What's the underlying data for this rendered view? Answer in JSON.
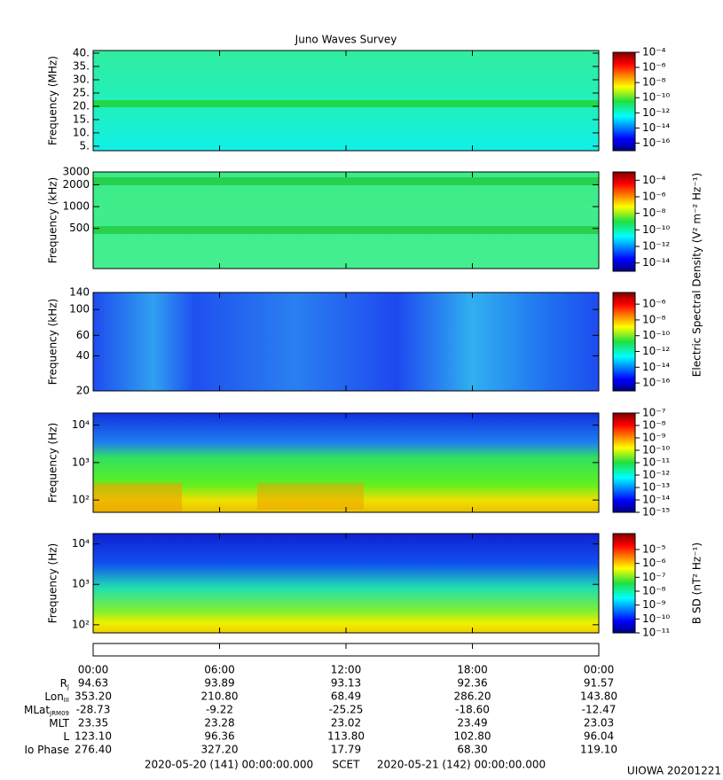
{
  "chart_data": [
    {
      "type": "spectrogram",
      "title": "Juno Waves Survey",
      "y_label": "Frequency (MHz)",
      "ylog": false,
      "ylim": [
        3.3,
        41
      ],
      "yticks": [
        {
          "value": 5,
          "label": "5."
        },
        {
          "value": 10,
          "label": "10."
        },
        {
          "value": 15,
          "label": "15."
        },
        {
          "value": 20,
          "label": "20."
        },
        {
          "value": 25,
          "label": "25."
        },
        {
          "value": 30,
          "label": "30."
        },
        {
          "value": 35,
          "label": "35."
        },
        {
          "value": 40,
          "label": "40."
        }
      ],
      "colorbar": {
        "log": true,
        "lim": [
          1e-17,
          0.0001
        ],
        "ticks": [
          {
            "value": 0.0001,
            "label": "10⁻⁴"
          },
          {
            "value": 1e-06,
            "label": "10⁻⁶"
          },
          {
            "value": 1e-08,
            "label": "10⁻⁸"
          },
          {
            "value": 1e-10,
            "label": "10⁻¹⁰"
          },
          {
            "value": 1e-12,
            "label": "10⁻¹²"
          },
          {
            "value": 1e-14,
            "label": "10⁻¹⁴"
          },
          {
            "value": 1e-16,
            "label": "10⁻¹⁶"
          }
        ]
      }
    },
    {
      "type": "spectrogram",
      "y_label": "Frequency (kHz)",
      "ylog": true,
      "ylim": [
        140,
        3000
      ],
      "yticks": [
        500,
        1000,
        2000,
        3000
      ],
      "colorbar": {
        "log": true,
        "lim": [
          1e-15,
          0.001
        ],
        "label": "Electric Spectral Density (V² m⁻² Hz⁻¹)",
        "ticks": [
          {
            "value": 0.0001,
            "label": "10⁻⁴"
          },
          {
            "value": 1e-06,
            "label": "10⁻⁶"
          },
          {
            "value": 1e-08,
            "label": "10⁻⁸"
          },
          {
            "value": 1e-10,
            "label": "10⁻¹⁰"
          },
          {
            "value": 1e-12,
            "label": "10⁻¹²"
          },
          {
            "value": 1e-14,
            "label": "10⁻¹⁴"
          }
        ]
      }
    },
    {
      "type": "spectrogram",
      "y_label": "Frequency (kHz)",
      "ylog": true,
      "ylim": [
        20,
        140
      ],
      "yticks": [
        20,
        40,
        60,
        100,
        140
      ],
      "colorbar": {
        "log": true,
        "lim": [
          1e-17,
          3e-05
        ],
        "ticks": [
          {
            "value": 1e-06,
            "label": "10⁻⁶"
          },
          {
            "value": 1e-08,
            "label": "10⁻⁸"
          },
          {
            "value": 1e-10,
            "label": "10⁻¹⁰"
          },
          {
            "value": 1e-12,
            "label": "10⁻¹²"
          },
          {
            "value": 1e-14,
            "label": "10⁻¹⁴"
          },
          {
            "value": 1e-16,
            "label": "10⁻¹⁶"
          }
        ]
      }
    },
    {
      "type": "spectrogram",
      "y_label": "Frequency (Hz)",
      "ylog": true,
      "ylim": [
        47,
        21000
      ],
      "yticks": [
        {
          "value": 100,
          "label": "10²"
        },
        {
          "value": 1000,
          "label": "10³"
        },
        {
          "value": 10000,
          "label": "10⁴"
        }
      ],
      "colorbar": {
        "log": true,
        "lim": [
          1e-15,
          1e-07
        ],
        "ticks": [
          {
            "value": 1e-07,
            "label": "10⁻⁷"
          },
          {
            "value": 1e-08,
            "label": "10⁻⁸"
          },
          {
            "value": 1e-09,
            "label": "10⁻⁹"
          },
          {
            "value": 1e-10,
            "label": "10⁻¹⁰"
          },
          {
            "value": 1e-11,
            "label": "10⁻¹¹"
          },
          {
            "value": 1e-12,
            "label": "10⁻¹²"
          },
          {
            "value": 1e-13,
            "label": "10⁻¹³"
          },
          {
            "value": 1e-14,
            "label": "10⁻¹⁴"
          },
          {
            "value": 1e-15,
            "label": "10⁻¹⁵"
          }
        ]
      }
    },
    {
      "type": "spectrogram",
      "y_label": "Frequency (Hz)",
      "ylog": true,
      "ylim": [
        63,
        18000
      ],
      "yticks": [
        {
          "value": 100,
          "label": "10²"
        },
        {
          "value": 1000,
          "label": "10³"
        },
        {
          "value": 10000,
          "label": "10⁴"
        }
      ],
      "colorbar": {
        "log": true,
        "lim": [
          1e-11,
          0.00014
        ],
        "label": "B SD (nT² Hz⁻¹)",
        "ticks": [
          {
            "value": 1e-05,
            "label": "10⁻⁵"
          },
          {
            "value": 1e-06,
            "label": "10⁻⁶"
          },
          {
            "value": 1e-07,
            "label": "10⁻⁷"
          },
          {
            "value": 1e-08,
            "label": "10⁻⁸"
          },
          {
            "value": 1e-09,
            "label": "10⁻⁹"
          },
          {
            "value": 1e-10,
            "label": "10⁻¹⁰"
          },
          {
            "value": 1e-11,
            "label": "10⁻¹¹"
          }
        ]
      }
    }
  ],
  "time_axis": {
    "xlim": [
      0,
      24
    ],
    "xticks": [
      {
        "value": 0,
        "label": "00:00"
      },
      {
        "value": 6,
        "label": "06:00"
      },
      {
        "value": 12,
        "label": "12:00"
      },
      {
        "value": 18,
        "label": "18:00"
      },
      {
        "value": 24,
        "label": "00:00"
      }
    ]
  },
  "ephemeris": {
    "rows": [
      {
        "label": "R",
        "sub": "J",
        "values": [
          "94.63",
          "93.89",
          "93.13",
          "92.36",
          "91.57"
        ]
      },
      {
        "label": "Lon",
        "sub": "III",
        "values": [
          "353.20",
          "210.80",
          "68.49",
          "286.20",
          "143.80"
        ]
      },
      {
        "label": "MLat",
        "sub": "JRM09",
        "values": [
          "-28.73",
          "-9.22",
          "-25.25",
          "-18.60",
          "-12.47"
        ]
      },
      {
        "label": "MLT",
        "values": [
          "23.35",
          "23.28",
          "23.02",
          "23.49",
          "23.03"
        ]
      },
      {
        "label": "L",
        "values": [
          "123.10",
          "96.36",
          "113.80",
          "102.80",
          "96.04"
        ]
      },
      {
        "label": "Io Phase",
        "values": [
          "276.40",
          "327.20",
          "17.79",
          "68.30",
          "119.10"
        ]
      }
    ]
  },
  "footer": {
    "start": "2020-05-20 (141) 00:00:00.000",
    "axis": "SCET",
    "end": "2020-05-21 (142) 00:00:00.000",
    "credit": "UIOWA 20201221"
  }
}
